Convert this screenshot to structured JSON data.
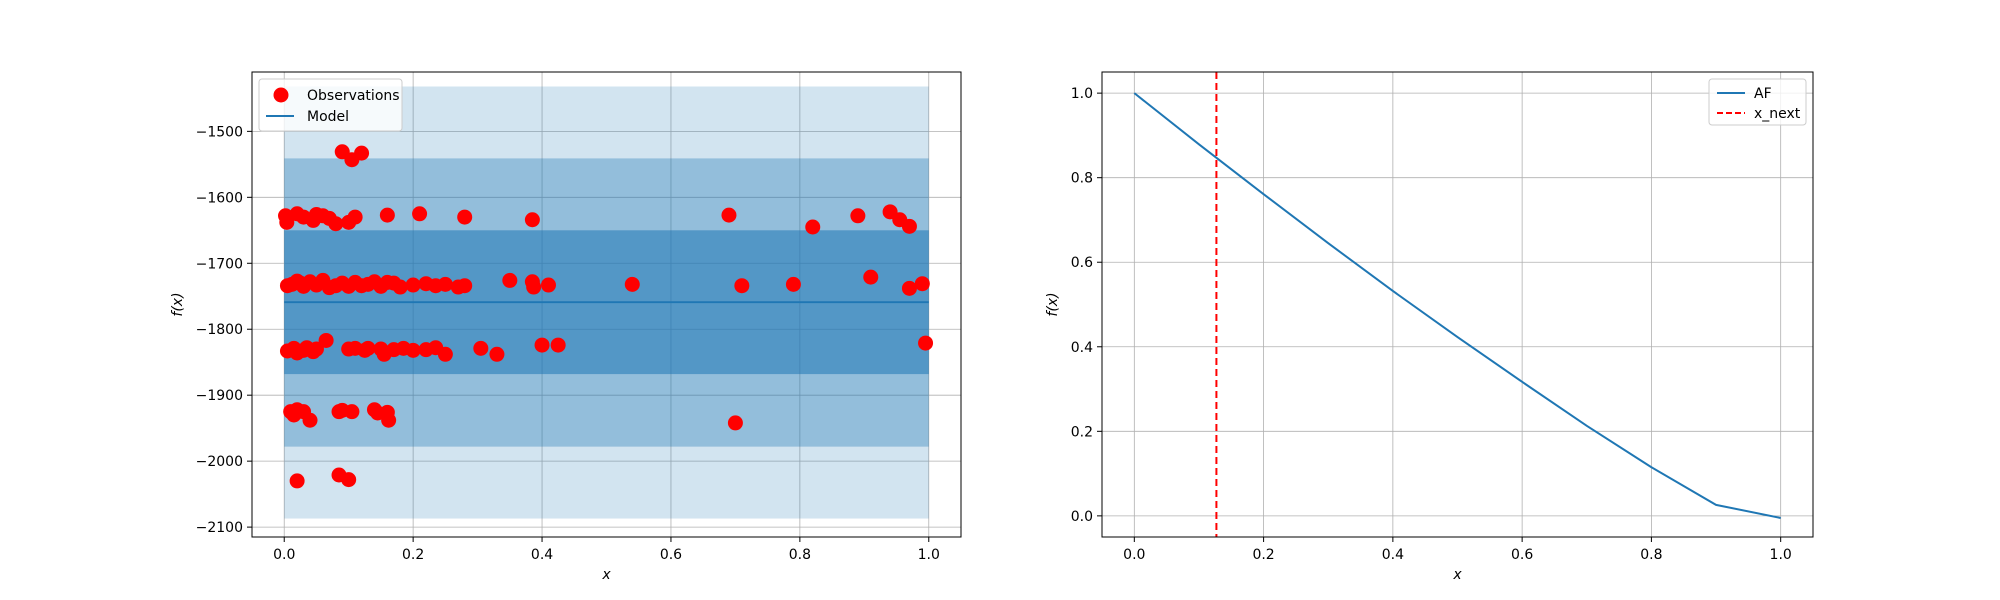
{
  "chart_data": [
    {
      "type": "scatter",
      "title": "",
      "xlabel": "x",
      "ylabel": "f(x)",
      "xlim": [
        -0.05,
        1.05
      ],
      "ylim": [
        -2115,
        -1410
      ],
      "xticks": [
        0.0,
        0.2,
        0.4,
        0.6,
        0.8,
        1.0
      ],
      "xtick_labels": [
        "0.0",
        "0.2",
        "0.4",
        "0.6",
        "0.8",
        "1.0"
      ],
      "yticks": [
        -1500,
        -1600,
        -1700,
        -1800,
        -1900,
        -2000,
        -2100
      ],
      "ytick_labels": [
        "−1500",
        "−1600",
        "−1700",
        "−1800",
        "−1900",
        "−2000",
        "−2100"
      ],
      "grid": true,
      "legend": {
        "position": "top-left",
        "entries": [
          {
            "label": "Observations",
            "marker": "circle",
            "color": "#ff0000"
          },
          {
            "label": "Model",
            "marker": "line",
            "color": "#1f77b4"
          }
        ]
      },
      "model": {
        "x": [
          0.0,
          1.0
        ],
        "mean": -1759,
        "color": "#1f77b4"
      },
      "bands": [
        {
          "lower": -2087,
          "upper": -1432,
          "color": "#1f77b4",
          "opacity": 0.2
        },
        {
          "lower": -1978,
          "upper": -1541,
          "color": "#1f77b4",
          "opacity": 0.35
        },
        {
          "lower": -1868,
          "upper": -1650,
          "color": "#1f77b4",
          "opacity": 0.55
        }
      ],
      "observations": {
        "color": "#ff0000",
        "points": [
          [
            0.002,
            -1628
          ],
          [
            0.004,
            -1638
          ],
          [
            0.02,
            -1625
          ],
          [
            0.03,
            -1630
          ],
          [
            0.045,
            -1635
          ],
          [
            0.05,
            -1626
          ],
          [
            0.06,
            -1628
          ],
          [
            0.07,
            -1632
          ],
          [
            0.08,
            -1640
          ],
          [
            0.1,
            -1638
          ],
          [
            0.11,
            -1630
          ],
          [
            0.16,
            -1627
          ],
          [
            0.21,
            -1625
          ],
          [
            0.28,
            -1630
          ],
          [
            0.385,
            -1634
          ],
          [
            0.69,
            -1627
          ],
          [
            0.82,
            -1645
          ],
          [
            0.89,
            -1628
          ],
          [
            0.94,
            -1622
          ],
          [
            0.955,
            -1634
          ],
          [
            0.97,
            -1644
          ],
          [
            0.005,
            -1734
          ],
          [
            0.012,
            -1732
          ],
          [
            0.02,
            -1727
          ],
          [
            0.025,
            -1730
          ],
          [
            0.03,
            -1735
          ],
          [
            0.04,
            -1728
          ],
          [
            0.05,
            -1733
          ],
          [
            0.06,
            -1726
          ],
          [
            0.07,
            -1737
          ],
          [
            0.08,
            -1734
          ],
          [
            0.09,
            -1730
          ],
          [
            0.1,
            -1735
          ],
          [
            0.11,
            -1729
          ],
          [
            0.12,
            -1734
          ],
          [
            0.13,
            -1732
          ],
          [
            0.14,
            -1728
          ],
          [
            0.15,
            -1735
          ],
          [
            0.16,
            -1729
          ],
          [
            0.17,
            -1730
          ],
          [
            0.18,
            -1736
          ],
          [
            0.2,
            -1733
          ],
          [
            0.22,
            -1731
          ],
          [
            0.235,
            -1734
          ],
          [
            0.25,
            -1732
          ],
          [
            0.27,
            -1736
          ],
          [
            0.28,
            -1734
          ],
          [
            0.35,
            -1726
          ],
          [
            0.385,
            -1728
          ],
          [
            0.387,
            -1736
          ],
          [
            0.41,
            -1733
          ],
          [
            0.54,
            -1732
          ],
          [
            0.71,
            -1734
          ],
          [
            0.79,
            -1732
          ],
          [
            0.91,
            -1721
          ],
          [
            0.97,
            -1738
          ],
          [
            0.99,
            -1731
          ],
          [
            0.005,
            -1833
          ],
          [
            0.015,
            -1829
          ],
          [
            0.02,
            -1836
          ],
          [
            0.03,
            -1832
          ],
          [
            0.035,
            -1828
          ],
          [
            0.045,
            -1834
          ],
          [
            0.05,
            -1830
          ],
          [
            0.065,
            -1817
          ],
          [
            0.1,
            -1830
          ],
          [
            0.11,
            -1829
          ],
          [
            0.125,
            -1832
          ],
          [
            0.13,
            -1829
          ],
          [
            0.15,
            -1830
          ],
          [
            0.155,
            -1838
          ],
          [
            0.17,
            -1831
          ],
          [
            0.185,
            -1829
          ],
          [
            0.2,
            -1832
          ],
          [
            0.22,
            -1831
          ],
          [
            0.235,
            -1828
          ],
          [
            0.25,
            -1838
          ],
          [
            0.305,
            -1829
          ],
          [
            0.33,
            -1838
          ],
          [
            0.4,
            -1824
          ],
          [
            0.425,
            -1824
          ],
          [
            0.995,
            -1821
          ],
          [
            0.01,
            -1925
          ],
          [
            0.015,
            -1930
          ],
          [
            0.02,
            -1922
          ],
          [
            0.03,
            -1925
          ],
          [
            0.04,
            -1938
          ],
          [
            0.085,
            -1925
          ],
          [
            0.09,
            -1923
          ],
          [
            0.105,
            -1925
          ],
          [
            0.14,
            -1922
          ],
          [
            0.145,
            -1927
          ],
          [
            0.16,
            -1926
          ],
          [
            0.162,
            -1938
          ],
          [
            0.7,
            -1942
          ],
          [
            0.02,
            -2030
          ],
          [
            0.085,
            -2021
          ],
          [
            0.1,
            -2028
          ],
          [
            0.09,
            -1531
          ],
          [
            0.105,
            -1543
          ],
          [
            0.12,
            -1533
          ]
        ]
      }
    },
    {
      "type": "line",
      "title": "",
      "xlabel": "x",
      "ylabel": "f(x)",
      "xlim": [
        -0.05,
        1.05
      ],
      "ylim": [
        -0.05,
        1.05
      ],
      "xticks": [
        0.0,
        0.2,
        0.4,
        0.6,
        0.8,
        1.0
      ],
      "xtick_labels": [
        "0.0",
        "0.2",
        "0.4",
        "0.6",
        "0.8",
        "1.0"
      ],
      "yticks": [
        0.0,
        0.2,
        0.4,
        0.6,
        0.8,
        1.0
      ],
      "ytick_labels": [
        "0.0",
        "0.2",
        "0.4",
        "0.6",
        "0.8",
        "1.0"
      ],
      "grid": true,
      "legend": {
        "position": "top-right",
        "entries": [
          {
            "label": "AF",
            "style": "solid",
            "color": "#1f77b4"
          },
          {
            "label": "x_next",
            "style": "dashed",
            "color": "#ff0000"
          }
        ]
      },
      "series": [
        {
          "name": "AF",
          "color": "#1f77b4",
          "x": [
            0.0,
            0.1,
            0.2,
            0.3,
            0.4,
            0.5,
            0.6,
            0.7,
            0.8,
            0.9,
            1.0
          ],
          "y": [
            1.0,
            0.879,
            0.761,
            0.645,
            0.532,
            0.423,
            0.317,
            0.213,
            0.115,
            0.026,
            -0.005
          ]
        }
      ],
      "x_next": {
        "x": 0.127,
        "color": "#ff0000"
      }
    }
  ]
}
